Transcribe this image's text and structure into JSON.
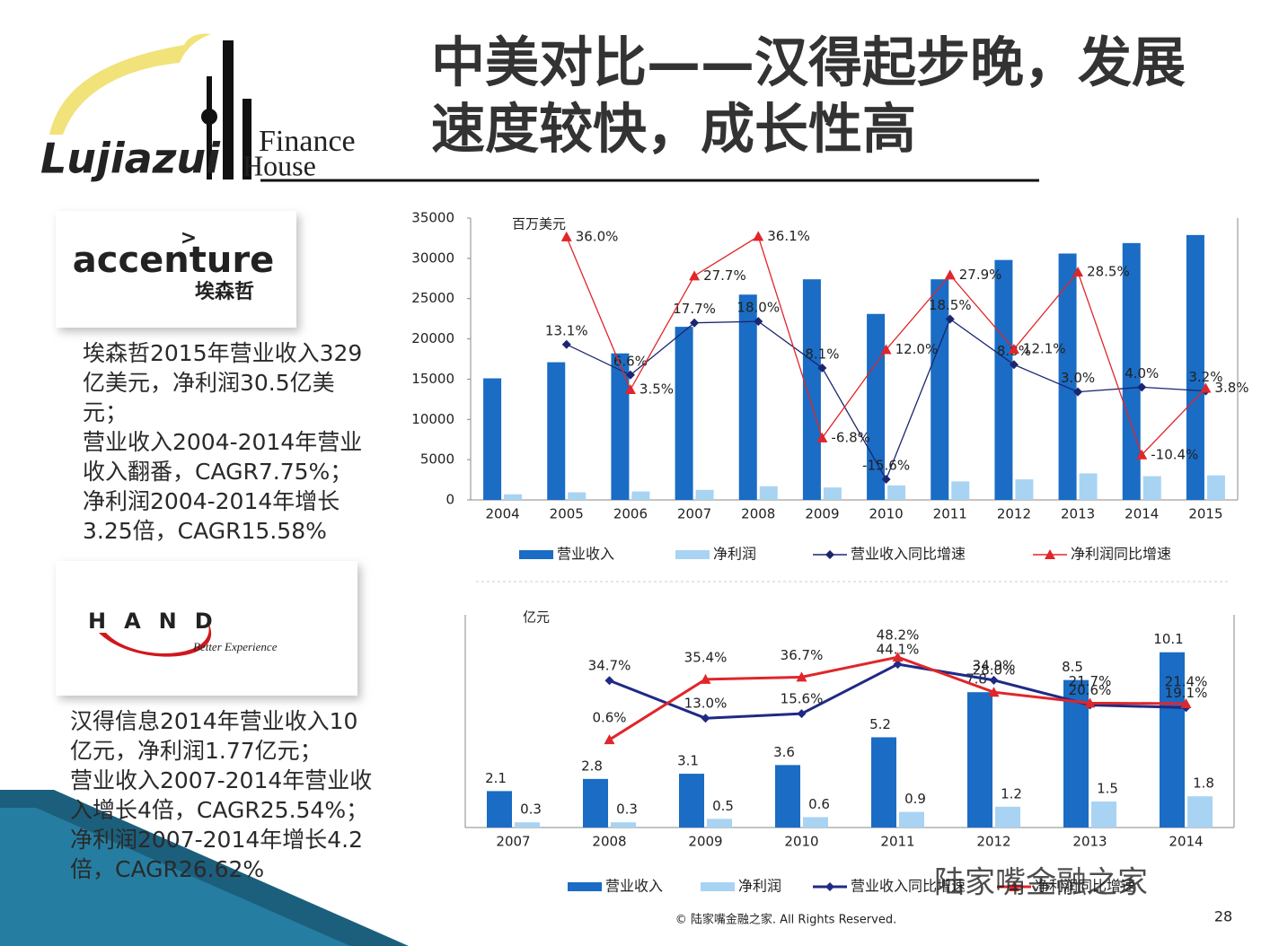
{
  "slide": {
    "title_lines": [
      "中美对比——汉得起步晚，发展",
      "速度较快，成长性高"
    ],
    "logo": {
      "word": "Lujiazui",
      "finance": "Finance",
      "house": "House"
    },
    "accenture": {
      "name": "accenture",
      "cn": "埃森哲"
    },
    "hand": {
      "name": "HAND",
      "tagline": "Better Experience"
    },
    "accenture_text": [
      "埃森哲2015年营业收入329",
      "亿美元，净利润30.5亿美",
      "元；",
      "营业收入2004-2014年营业",
      "收入翻番，CAGR7.75%；",
      "净利润2004-2014年增长",
      "3.25倍，CAGR15.58%"
    ],
    "hand_text": [
      "汉得信息2014年营业收入10",
      "亿元，净利润1.77亿元；",
      "营业收入2007-2014年营业收",
      "入增长4倍，CAGR25.54%；",
      "净利润2007-2014年增长4.2",
      "倍，CAGR26.62%"
    ],
    "watermark": "陆家嘴金融之家",
    "footer": "© 陆家嘴金融之家. All Rights Reserved.",
    "page_number": "28"
  },
  "chart_data": [
    {
      "type": "bar",
      "y_label": "百万美元",
      "categories": [
        "2004",
        "2005",
        "2006",
        "2007",
        "2008",
        "2009",
        "2010",
        "2011",
        "2012",
        "2013",
        "2014",
        "2015"
      ],
      "ylim": [
        0,
        35000
      ],
      "yticks": [
        0,
        5000,
        10000,
        15000,
        20000,
        25000,
        30000,
        35000
      ],
      "y2lim": [
        -20,
        40
      ],
      "series": [
        {
          "name": "营业收入",
          "type": "bar",
          "color": "#1a6cc4",
          "values": [
            15100,
            17100,
            18200,
            21500,
            25500,
            27400,
            23100,
            27400,
            29800,
            30600,
            31900,
            32900
          ]
        },
        {
          "name": "净利润",
          "type": "bar",
          "color": "#a9d3f3",
          "values": [
            700,
            950,
            1050,
            1250,
            1700,
            1550,
            1800,
            2300,
            2550,
            3300,
            2950,
            3050
          ]
        },
        {
          "name": "营业收入同比增速",
          "type": "line",
          "axis": "y2",
          "marker": "diamond",
          "color": "#1b2570",
          "values": [
            null,
            13.1,
            6.6,
            17.7,
            18.0,
            8.1,
            -15.6,
            18.5,
            8.8,
            3.0,
            4.0,
            3.2
          ],
          "value_labels": [
            null,
            "13.1%",
            "6.6%",
            "17.7%",
            "18.0%",
            "8.1%",
            "-15.6%",
            "18.5%",
            "8.8%",
            "3.0%",
            "4.0%",
            "3.2%"
          ]
        },
        {
          "name": "净利润同比增速",
          "type": "line",
          "axis": "y2",
          "marker": "triangle",
          "color": "#e0262a",
          "values": [
            null,
            36.0,
            3.5,
            27.7,
            36.1,
            -6.8,
            12.0,
            27.9,
            12.1,
            28.5,
            -10.4,
            3.8
          ],
          "value_labels": [
            null,
            "36.0%",
            "3.5%",
            "27.7%",
            "36.1%",
            "-6.8%",
            "12.0%",
            "27.9%",
            "12.1%",
            "28.5%",
            "-10.4%",
            "3.8%"
          ]
        }
      ]
    },
    {
      "type": "bar",
      "y_label": "亿元",
      "categories": [
        "2007",
        "2008",
        "2009",
        "2010",
        "2011",
        "2012",
        "2013",
        "2014"
      ],
      "ylim": [
        0,
        12
      ],
      "y2lim": [
        -50,
        70
      ],
      "series": [
        {
          "name": "营业收入",
          "type": "bar",
          "color": "#1a6cc4",
          "values": [
            2.1,
            2.8,
            3.1,
            3.6,
            5.2,
            7.8,
            8.5,
            10.1
          ]
        },
        {
          "name": "净利润",
          "type": "bar",
          "color": "#a9d3f3",
          "values": [
            0.3,
            0.3,
            0.5,
            0.6,
            0.9,
            1.2,
            1.5,
            1.8
          ]
        },
        {
          "name": "营业收入同比增速",
          "type": "line",
          "axis": "y2",
          "marker": "diamond",
          "color": "#1f2a85",
          "values": [
            null,
            34.7,
            13.0,
            15.6,
            44.1,
            34.9,
            20.6,
            19.1
          ],
          "value_labels": [
            null,
            "34.7%",
            "13.0%",
            "15.6%",
            "44.1%",
            "34.9%",
            "20.6%",
            "19.1%"
          ]
        },
        {
          "name": "净利润同比增速",
          "type": "line",
          "axis": "y2",
          "marker": "triangle",
          "color": "#e0262a",
          "values": [
            null,
            0.6,
            35.4,
            36.7,
            48.2,
            28.0,
            21.7,
            21.4
          ],
          "value_labels": [
            null,
            "0.6%",
            "35.4%",
            "36.7%",
            "48.2%",
            "28.0%",
            "21.7%",
            "21.4%"
          ]
        }
      ]
    }
  ]
}
